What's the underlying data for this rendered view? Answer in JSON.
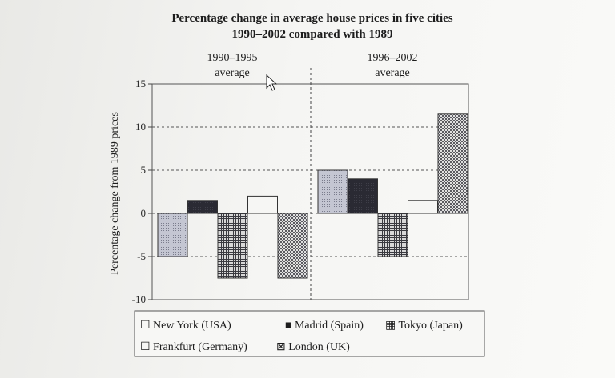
{
  "chart_data": {
    "type": "bar",
    "title": "Percentage change in average house prices in five cities",
    "subtitle": "1990–2002 compared with 1989",
    "ylabel": "Percentage change from 1989 prices",
    "ylim": [
      -10,
      15
    ],
    "yticks": [
      "15",
      "10",
      "5",
      "0",
      "-5",
      "-10"
    ],
    "grid": true,
    "legend_position": "bottom",
    "categories": [
      "1990–1995",
      "1996–2002"
    ],
    "period_labels": [
      {
        "line1": "1990–1995",
        "line2": "average"
      },
      {
        "line1": "1996–2002",
        "line2": "average"
      }
    ],
    "series": [
      {
        "name": "New York (USA)",
        "values": [
          -5,
          5
        ],
        "pattern": "dots",
        "legend_marker": "☐"
      },
      {
        "name": "Madrid (Spain)",
        "values": [
          1.5,
          4
        ],
        "pattern": "dark",
        "legend_marker": "■"
      },
      {
        "name": "Tokyo (Japan)",
        "values": [
          -7.5,
          -5
        ],
        "pattern": "grid",
        "legend_marker": "▦"
      },
      {
        "name": "Frankfurt (Germany)",
        "values": [
          2,
          1.5
        ],
        "pattern": "plain",
        "legend_marker": "☐"
      },
      {
        "name": "London (UK)",
        "values": [
          -7.5,
          11.5
        ],
        "pattern": "check",
        "legend_marker": "⊠"
      }
    ]
  },
  "colors": {
    "text": "#1d1d1d",
    "new_york_fill": "#b4b6c4",
    "madrid_fill": "#26262e",
    "tokyo_fill": "#5e5e66",
    "frankfurt_fill": "#f6f6f4",
    "london_fill": "#8e8e94"
  },
  "ui": {
    "cursor_icon": "mouse-pointer-icon"
  }
}
